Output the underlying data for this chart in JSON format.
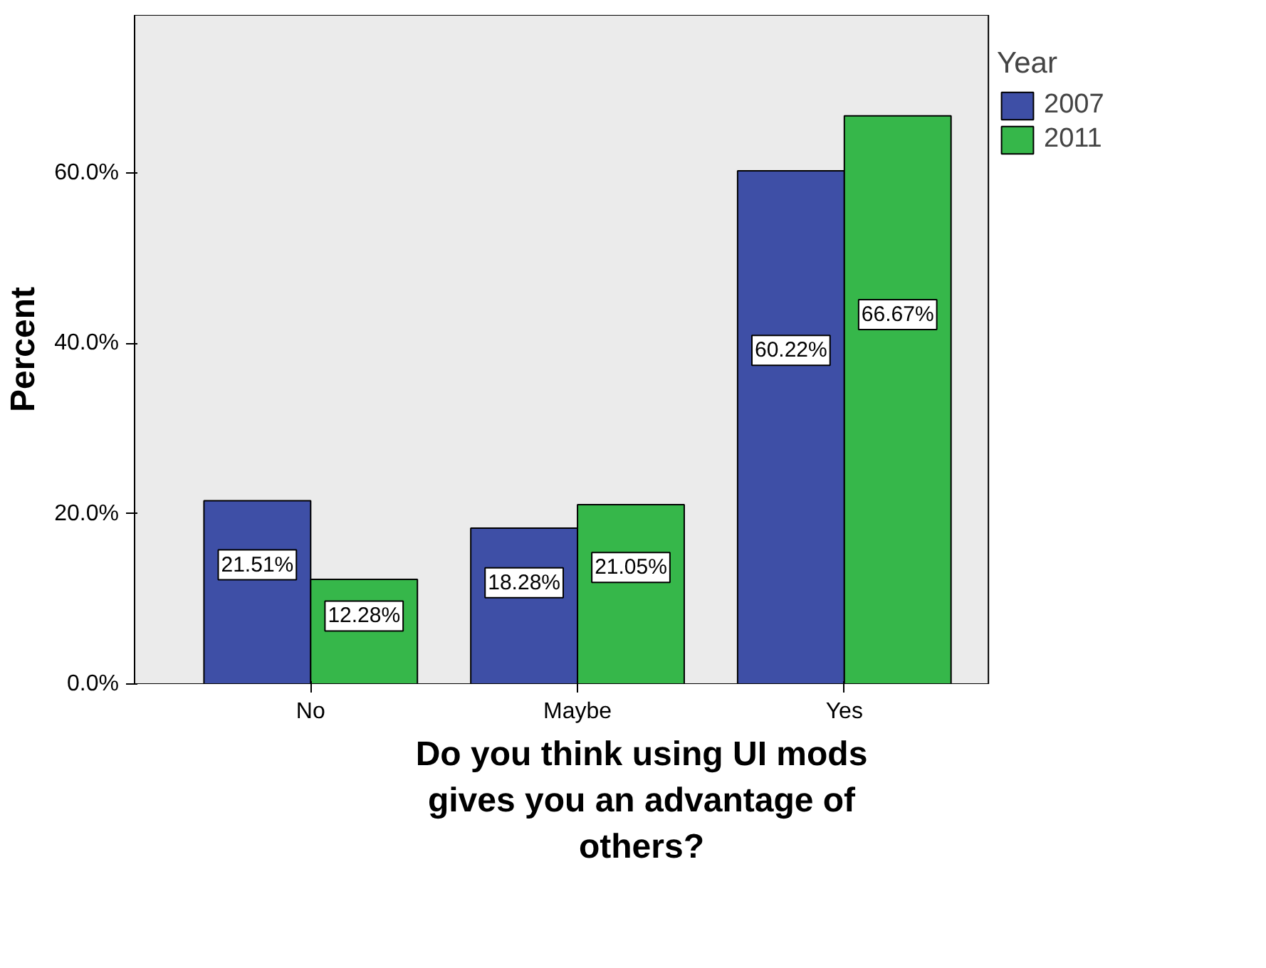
{
  "chart_data": {
    "type": "bar",
    "xlabel": "Do you think using UI mods\ngives you an advantage of\nothers?",
    "ylabel": "Percent",
    "legend_title": "Year",
    "categories": [
      "No",
      "Maybe",
      "Yes"
    ],
    "series": [
      {
        "name": "2007",
        "color": "#3e4fa6",
        "values": [
          21.51,
          18.28,
          60.22
        ]
      },
      {
        "name": "2011",
        "color": "#36b74a",
        "values": [
          12.28,
          21.05,
          66.67
        ]
      }
    ],
    "ylim": [
      0,
      78.5
    ],
    "yticks": [
      {
        "value": 0,
        "label": "0.0%"
      },
      {
        "value": 20,
        "label": "20.0%"
      },
      {
        "value": 40,
        "label": "40.0%"
      },
      {
        "value": 60,
        "label": "60.0%"
      }
    ],
    "value_labels": [
      [
        "21.51%",
        "18.28%",
        "60.22%"
      ],
      [
        "12.28%",
        "21.05%",
        "66.67%"
      ]
    ],
    "grid": false,
    "legend": "right"
  }
}
